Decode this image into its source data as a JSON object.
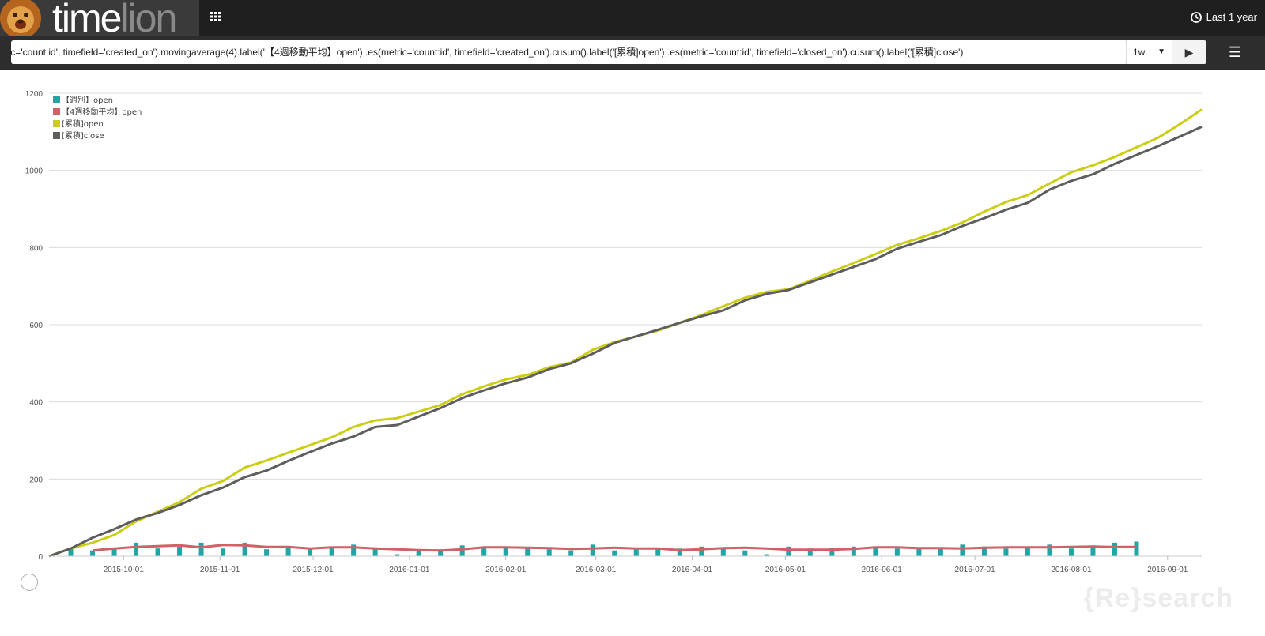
{
  "app": {
    "logo_text_1": "time",
    "logo_text_2": "lion",
    "time_range": "Last 1 year"
  },
  "query": {
    "expression": "bars(),.es(metric='count:id', timefield='created_on').movingaverage(4).label('【4週移動平均】open'),.es(metric='count:id', timefield='created_on').cusum().label('[累積]open'),.es(metric='count:id', timefield='closed_on').cusum().label('[累積]close')",
    "interval": "1w"
  },
  "watermark": "{Re}search",
  "colors": {
    "bars": "#1fa6a6",
    "moving_average": "#cf6167",
    "cusum_open": "#cbce14",
    "cusum_close": "#5e5e5e"
  },
  "chart_data": {
    "type": "line",
    "legend_position": "top-left",
    "grid": true,
    "ylim": [
      0,
      1200
    ],
    "yticks": [
      0,
      200,
      400,
      600,
      800,
      1000,
      1200
    ],
    "x_start": "2015-09-07",
    "x_end": "2016-09-12",
    "xtick_labels": [
      "2015-10-01",
      "2015-11-01",
      "2015-12-01",
      "2016-01-01",
      "2016-02-01",
      "2016-03-01",
      "2016-04-01",
      "2016-05-01",
      "2016-06-01",
      "2016-07-01",
      "2016-08-01",
      "2016-09-01"
    ],
    "series": [
      {
        "name": "【週別】open",
        "kind": "bar",
        "values": [
          20,
          15,
          20,
          35,
          20,
          25,
          35,
          20,
          35,
          18,
          22,
          20,
          22,
          30,
          20,
          5,
          15,
          18,
          28,
          22,
          22,
          20,
          18,
          15,
          30,
          15,
          18,
          18,
          20,
          25,
          20,
          15,
          5,
          25,
          20,
          22,
          25,
          22,
          20,
          22,
          20,
          30,
          25,
          20,
          25,
          30,
          20,
          28,
          35,
          38
        ]
      },
      {
        "name": "【4週移動平均】open",
        "kind": "line",
        "start_index": 2,
        "values": [
          15,
          20,
          24,
          26,
          28,
          23,
          29,
          28,
          24,
          24,
          20,
          23,
          23,
          20,
          18,
          16,
          15,
          18,
          23,
          23,
          22,
          21,
          19,
          20,
          22,
          20,
          20,
          16,
          18,
          21,
          22,
          20,
          17,
          17,
          17,
          19,
          23,
          23,
          21,
          21,
          20,
          22,
          23,
          23,
          23,
          24,
          25,
          24,
          24
        ]
      },
      {
        "name": "[累積]open",
        "kind": "line",
        "values": [
          0,
          20,
          35,
          55,
          90,
          115,
          140,
          175,
          195,
          230,
          248,
          268,
          288,
          308,
          335,
          352,
          358,
          375,
          392,
          420,
          440,
          458,
          470,
          490,
          502,
          535,
          555,
          570,
          585,
          605,
          625,
          648,
          670,
          685,
          692,
          714,
          738,
          760,
          783,
          807,
          824,
          843,
          865,
          893,
          918,
          936,
          966,
          995,
          1013,
          1035,
          1060,
          1085,
          1120,
          1158
        ]
      },
      {
        "name": "[累積]close",
        "kind": "line",
        "values": [
          0,
          20,
          48,
          70,
          95,
          112,
          133,
          158,
          178,
          205,
          222,
          247,
          270,
          292,
          310,
          335,
          340,
          362,
          384,
          410,
          430,
          448,
          463,
          485,
          500,
          525,
          553,
          570,
          587,
          605,
          622,
          637,
          663,
          680,
          690,
          710,
          730,
          750,
          770,
          797,
          815,
          832,
          856,
          876,
          898,
          916,
          950,
          973,
          990,
          1017,
          1040,
          1063,
          1088,
          1113
        ]
      }
    ]
  }
}
